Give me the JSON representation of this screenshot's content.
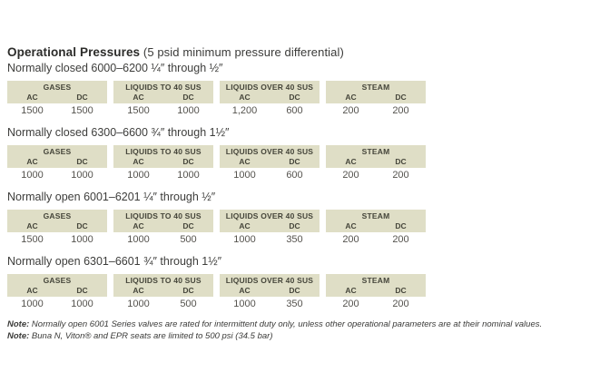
{
  "page": {
    "title_bold": "Operational Pressures",
    "title_rest": " (5 psid minimum pressure differential)"
  },
  "labels": {
    "ac": "AC",
    "dc": "DC"
  },
  "colors": {
    "header_band": "#dfdec6",
    "header_text": "#45453a",
    "body_text": "#55534e"
  },
  "sections": [
    {
      "heading": "Normally closed 6000–6200 ¼″ through ½″",
      "groups": [
        {
          "name": "GASES",
          "ac": "1500",
          "dc": "1500"
        },
        {
          "name": "LIQUIDS TO 40 SUS",
          "ac": "1500",
          "dc": "1000"
        },
        {
          "name": "LIQUIDS OVER 40 SUS",
          "ac": "1,200",
          "dc": "600"
        },
        {
          "name": "STEAM",
          "ac": "200",
          "dc": "200"
        }
      ]
    },
    {
      "heading": "Normally closed 6300–6600 ¾″ through 1½″",
      "groups": [
        {
          "name": "GASES",
          "ac": "1000",
          "dc": "1000"
        },
        {
          "name": "LIQUIDS TO 40 SUS",
          "ac": "1000",
          "dc": "1000"
        },
        {
          "name": "LIQUIDS OVER 40 SUS",
          "ac": "1000",
          "dc": "600"
        },
        {
          "name": "STEAM",
          "ac": "200",
          "dc": "200"
        }
      ]
    },
    {
      "heading": "Normally open 6001–6201 ¼″ through ½″",
      "groups": [
        {
          "name": "GASES",
          "ac": "1500",
          "dc": "1000"
        },
        {
          "name": "LIQUIDS TO 40 SUS",
          "ac": "1000",
          "dc": "500"
        },
        {
          "name": "LIQUIDS OVER 40 SUS",
          "ac": "1000",
          "dc": "350"
        },
        {
          "name": "STEAM",
          "ac": "200",
          "dc": "200"
        }
      ]
    },
    {
      "heading": "Normally open 6301–6601 ¾″ through 1½″",
      "groups": [
        {
          "name": "GASES",
          "ac": "1000",
          "dc": "1000"
        },
        {
          "name": "LIQUIDS TO 40 SUS",
          "ac": "1000",
          "dc": "500"
        },
        {
          "name": "LIQUIDS OVER 40 SUS",
          "ac": "1000",
          "dc": "350"
        },
        {
          "name": "STEAM",
          "ac": "200",
          "dc": "200"
        }
      ]
    }
  ],
  "notes": [
    {
      "label": "Note:",
      "text": " Normally open 6001 Series valves are rated for intermittent duty only, unless other operational parameters are at their nominal values."
    },
    {
      "label": "Note:",
      "text": " Buna N, Viton® and EPR seats are limited to 500 psi (34.5 bar)"
    }
  ]
}
